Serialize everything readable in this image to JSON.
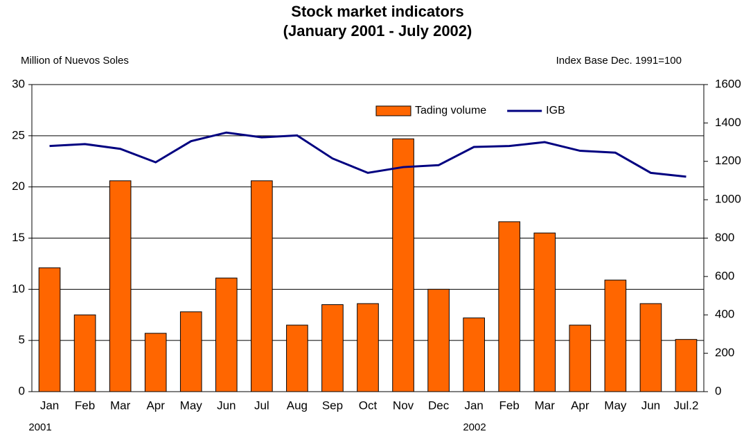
{
  "chart_data": {
    "type": "bar-line",
    "title": "Stock market indicators",
    "subtitle": "(January 2001 - July 2002)",
    "y_label": "Million of Nuevos Soles",
    "y2_label": "Index Base Dec. 1991=100",
    "categories": [
      "Jan",
      "Feb",
      "Mar",
      "Apr",
      "May",
      "Jun",
      "Jul",
      "Aug",
      "Sep",
      "Oct",
      "Nov",
      "Dec",
      "Jan",
      "Feb",
      "Mar",
      "Apr",
      "May",
      "Jun",
      "Jul.2"
    ],
    "year_labels": [
      "2001",
      "2002"
    ],
    "series": [
      {
        "name": "Tading volume",
        "type": "bar",
        "color": "#FF6600",
        "axis": "y",
        "values": [
          12.1,
          7.5,
          20.6,
          5.7,
          7.8,
          11.1,
          20.6,
          6.5,
          8.5,
          8.6,
          24.7,
          10.0,
          7.2,
          16.6,
          15.5,
          6.5,
          10.9,
          8.6,
          5.1
        ]
      },
      {
        "name": "IGB",
        "type": "line",
        "color": "#000080",
        "axis": "y2",
        "values": [
          1280,
          1290,
          1265,
          1195,
          1305,
          1350,
          1325,
          1335,
          1215,
          1140,
          1170,
          1180,
          1275,
          1280,
          1300,
          1255,
          1245,
          1140,
          1120
        ]
      }
    ],
    "ylim": [
      0,
      30
    ],
    "yticks": [
      0,
      5,
      10,
      15,
      20,
      25,
      30
    ],
    "y2lim": [
      0,
      1600
    ],
    "y2ticks": [
      0,
      200,
      400,
      600,
      800,
      1000,
      1200,
      1400,
      1600
    ],
    "grid": true,
    "legend": "top-right"
  }
}
